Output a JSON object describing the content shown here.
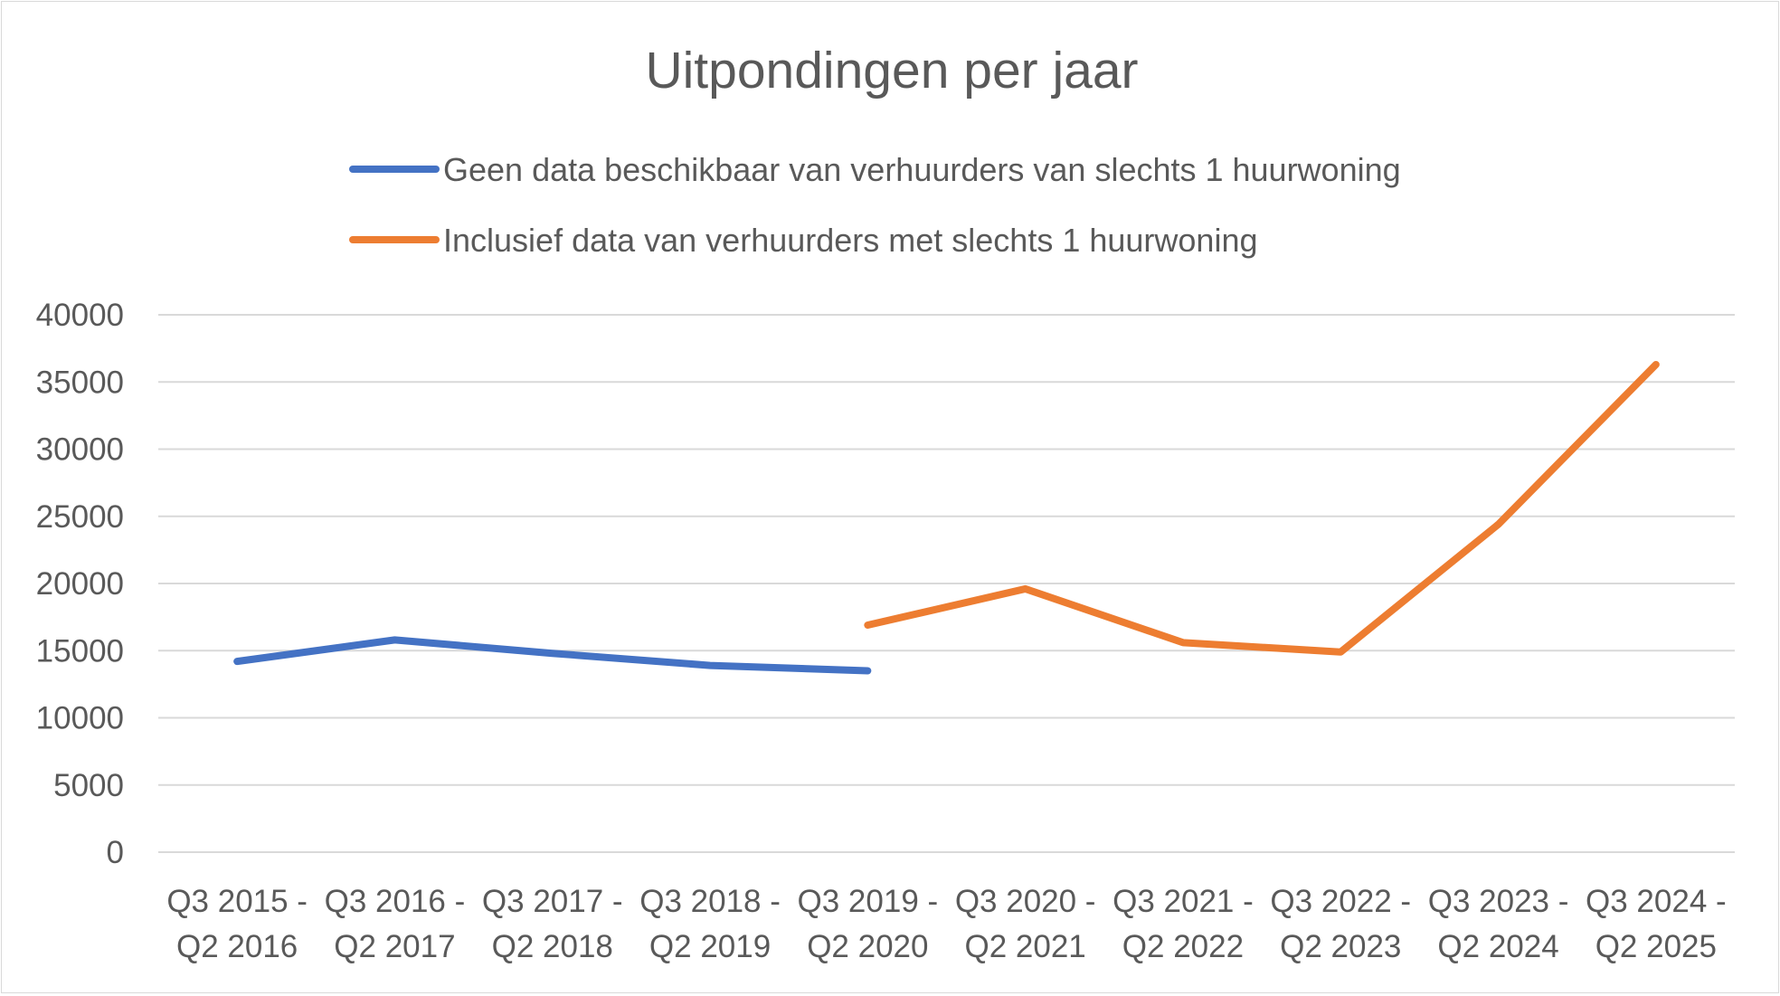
{
  "chart_data": {
    "type": "line",
    "title": "Uitpondingen per jaar",
    "xlabel": "",
    "ylabel": "",
    "ylim": [
      0,
      40000
    ],
    "y_ticks": [
      "0",
      "5000",
      "10000",
      "15000",
      "20000",
      "25000",
      "30000",
      "35000",
      "40000"
    ],
    "grid": true,
    "legend_position": "top",
    "categories": [
      [
        "Q3 2015 -",
        "Q2 2016"
      ],
      [
        "Q3 2016 -",
        "Q2 2017"
      ],
      [
        "Q3 2017 -",
        "Q2 2018"
      ],
      [
        "Q3 2018 -",
        "Q2 2019"
      ],
      [
        "Q3 2019 -",
        "Q2 2020"
      ],
      [
        "Q3 2020 -",
        "Q2 2021"
      ],
      [
        "Q3 2021 -",
        "Q2 2022"
      ],
      [
        "Q3 2022 -",
        "Q2 2023"
      ],
      [
        "Q3 2023 -",
        "Q2 2024"
      ],
      [
        "Q3 2024 -",
        "Q2 2025"
      ]
    ],
    "series": [
      {
        "name": "Geen data beschikbaar van verhuurders van slechts 1 huurwoning",
        "color": "#4472c4",
        "values": [
          14200,
          15800,
          14800,
          13900,
          13500,
          null,
          null,
          null,
          null,
          null
        ]
      },
      {
        "name": "Inclusief data van verhuurders met slechts 1 huurwoning",
        "color": "#ed7d31",
        "values": [
          null,
          null,
          null,
          null,
          16900,
          19600,
          15600,
          14900,
          24400,
          36300
        ]
      }
    ]
  }
}
